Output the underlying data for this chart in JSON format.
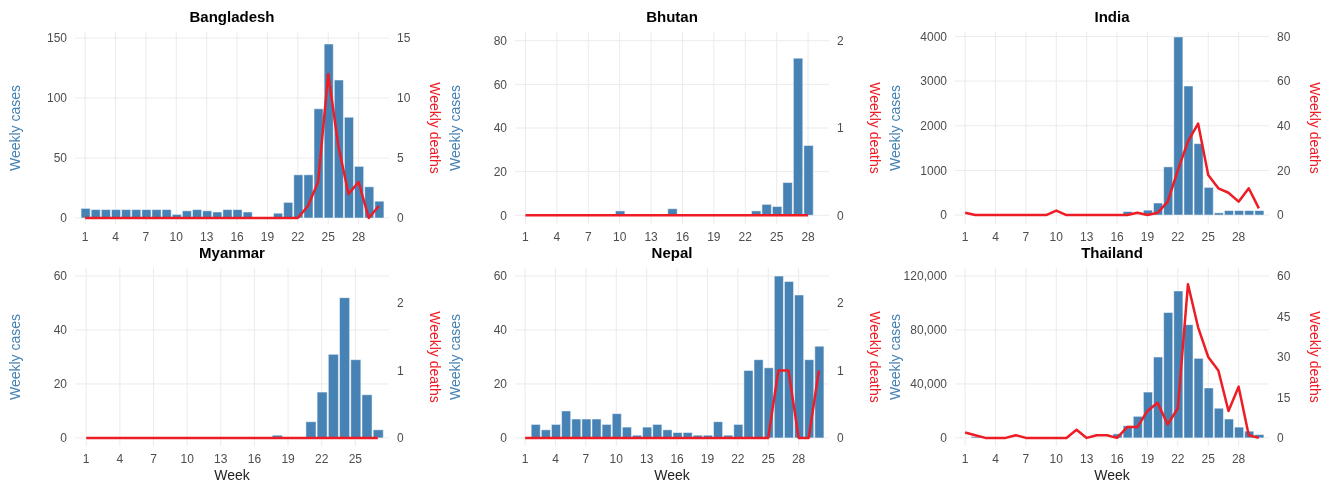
{
  "chart_data": [
    {
      "type": "bar",
      "title": "Bangladesh",
      "ylabel": "Weekly cases",
      "y2label": "Weekly deaths",
      "grid": true,
      "marker": "none",
      "x": [
        1,
        2,
        3,
        4,
        5,
        6,
        7,
        8,
        9,
        10,
        11,
        12,
        13,
        14,
        15,
        16,
        17,
        18,
        19,
        20,
        21,
        22,
        23,
        24,
        25,
        26,
        27,
        28,
        29,
        30
      ],
      "xlim": [
        0,
        31
      ],
      "xticks": [
        1,
        4,
        7,
        10,
        13,
        16,
        19,
        22,
        25,
        28
      ],
      "ylim": [
        -5,
        155
      ],
      "yticks": [
        0,
        50,
        100,
        150
      ],
      "y2lim": [
        -0.5,
        15.5
      ],
      "y2ticks": [
        0,
        5,
        10,
        15
      ],
      "series": [
        {
          "color": "#4682b4",
          "values": [
            8,
            7,
            7,
            7,
            7,
            7,
            7,
            7,
            7,
            3,
            6,
            7,
            6,
            5,
            7,
            7,
            5,
            0,
            0,
            4,
            13,
            36,
            36,
            91,
            145,
            115,
            84,
            43,
            26,
            14
          ]
        },
        {
          "type": "line",
          "axis": "y2",
          "color": "#ee1c25",
          "values": [
            0,
            0,
            0,
            0,
            0,
            0,
            0,
            0,
            0,
            0,
            0,
            0,
            0,
            0,
            0,
            0,
            0,
            0,
            0,
            0,
            0,
            0,
            1,
            3,
            12,
            6,
            2,
            3,
            0,
            1
          ]
        }
      ]
    },
    {
      "type": "bar",
      "title": "Bhutan",
      "ylabel": "Weekly cases",
      "y2label": "Weekly deaths",
      "grid": true,
      "marker": "none",
      "x": [
        1,
        2,
        3,
        4,
        5,
        6,
        7,
        8,
        9,
        10,
        11,
        12,
        13,
        14,
        15,
        16,
        17,
        18,
        19,
        20,
        21,
        22,
        23,
        24,
        25,
        26,
        27,
        28
      ],
      "xlim": [
        0,
        30
      ],
      "xticks": [
        1,
        4,
        7,
        10,
        13,
        16,
        19,
        22,
        25,
        28
      ],
      "ylim": [
        -4,
        84
      ],
      "yticks": [
        0,
        20,
        40,
        60,
        80
      ],
      "y2lim": [
        -0.1,
        2.1
      ],
      "y2ticks": [
        0,
        1,
        2
      ],
      "series": [
        {
          "color": "#4682b4",
          "values": [
            0,
            0,
            0,
            0,
            0,
            0,
            0,
            0,
            0,
            2,
            0,
            0,
            0,
            0,
            3,
            0,
            0,
            0,
            0,
            0,
            0,
            0,
            2,
            5,
            4,
            15,
            72,
            32
          ]
        },
        {
          "type": "line",
          "axis": "y2",
          "color": "#ee1c25",
          "values": [
            0,
            0,
            0,
            0,
            0,
            0,
            0,
            0,
            0,
            0,
            0,
            0,
            0,
            0,
            0,
            0,
            0,
            0,
            0,
            0,
            0,
            0,
            0,
            0,
            0,
            0,
            0,
            0
          ]
        }
      ]
    },
    {
      "type": "bar",
      "title": "India",
      "ylabel": "Weekly cases",
      "y2label": "Weekly deaths",
      "grid": true,
      "marker": "none",
      "x": [
        1,
        2,
        3,
        4,
        5,
        6,
        7,
        8,
        9,
        10,
        11,
        12,
        13,
        14,
        15,
        16,
        17,
        18,
        19,
        20,
        21,
        22,
        23,
        24,
        25,
        26,
        27,
        28,
        29,
        30
      ],
      "xlim": [
        0,
        31
      ],
      "xticks": [
        1,
        4,
        7,
        10,
        13,
        16,
        19,
        22,
        25,
        28
      ],
      "ylim": [
        -200,
        4100
      ],
      "yticks": [
        0,
        1000,
        2000,
        3000,
        4000
      ],
      "y2lim": [
        -4,
        82
      ],
      "y2ticks": [
        0,
        20,
        40,
        60,
        80
      ],
      "series": [
        {
          "color": "#4682b4",
          "values": [
            0,
            0,
            0,
            0,
            0,
            0,
            0,
            0,
            0,
            0,
            0,
            0,
            0,
            0,
            0,
            0,
            80,
            null,
            110,
            270,
            1080,
            3990,
            2890,
            1600,
            620,
            50,
            100,
            100,
            100,
            100
          ]
        },
        {
          "type": "line",
          "axis": "y2",
          "color": "#ee1c25",
          "values": [
            1,
            0,
            0,
            0,
            0,
            0,
            0,
            0,
            0,
            2,
            0,
            0,
            0,
            0,
            0,
            0,
            0,
            1,
            0,
            1,
            6,
            20,
            33,
            41,
            18,
            12,
            10,
            6,
            12,
            3
          ]
        }
      ]
    },
    {
      "type": "bar",
      "title": "Myanmar",
      "xlabel": "Week",
      "ylabel": "Weekly cases",
      "y2label": "Weekly deaths",
      "grid": true,
      "marker": "none",
      "x": [
        1,
        2,
        3,
        4,
        5,
        6,
        7,
        8,
        9,
        10,
        11,
        12,
        13,
        14,
        15,
        16,
        17,
        18,
        19,
        20,
        21,
        22,
        23,
        24,
        25,
        26,
        27
      ],
      "xlim": [
        0,
        28
      ],
      "xticks": [
        1,
        4,
        7,
        10,
        13,
        16,
        19,
        22,
        25
      ],
      "ylim": [
        -3,
        63
      ],
      "yticks": [
        0,
        20,
        40,
        60
      ],
      "y2lim": [
        -0.12,
        2.52
      ],
      "y2ticks": [
        0,
        1,
        2
      ],
      "series": [
        {
          "color": "#4682b4",
          "values": [
            0,
            0,
            0,
            0,
            0,
            0,
            0,
            0,
            0,
            0,
            0,
            0,
            0,
            0,
            0,
            0,
            0,
            1,
            0,
            0,
            6,
            17,
            31,
            52,
            29,
            16,
            3
          ]
        },
        {
          "type": "line",
          "axis": "y2",
          "color": "#ee1c25",
          "values": [
            0,
            0,
            0,
            0,
            0,
            0,
            0,
            0,
            0,
            0,
            0,
            0,
            0,
            0,
            0,
            0,
            0,
            0,
            0,
            0,
            0,
            0,
            0,
            0,
            0,
            0,
            0
          ]
        }
      ]
    },
    {
      "type": "bar",
      "title": "Nepal",
      "xlabel": "Week",
      "ylabel": "Weekly cases",
      "y2label": "Weekly deaths",
      "grid": true,
      "marker": "none",
      "x": [
        1,
        2,
        3,
        4,
        5,
        6,
        7,
        8,
        9,
        10,
        11,
        12,
        13,
        14,
        15,
        16,
        17,
        18,
        19,
        20,
        21,
        22,
        23,
        24,
        25,
        26,
        27,
        28,
        29,
        30
      ],
      "xlim": [
        0,
        31
      ],
      "xticks": [
        1,
        4,
        7,
        10,
        13,
        16,
        19,
        22,
        25,
        28
      ],
      "ylim": [
        -3,
        63
      ],
      "yticks": [
        0,
        20,
        40,
        60
      ],
      "y2lim": [
        -0.12,
        2.52
      ],
      "y2ticks": [
        0,
        1,
        2
      ],
      "series": [
        {
          "color": "#4682b4",
          "values": [
            0,
            5,
            3,
            5,
            10,
            7,
            7,
            7,
            5,
            9,
            4,
            1,
            4,
            5,
            3,
            2,
            2,
            1,
            1,
            6,
            1,
            5,
            25,
            29,
            26,
            60,
            58,
            53,
            29,
            34
          ]
        },
        {
          "type": "line",
          "axis": "y2",
          "color": "#ee1c25",
          "values": [
            0,
            0,
            0,
            0,
            0,
            0,
            0,
            0,
            0,
            0,
            0,
            0,
            0,
            0,
            0,
            0,
            0,
            0,
            0,
            0,
            0,
            0,
            0,
            0,
            0,
            1,
            1,
            0,
            0,
            1
          ]
        }
      ]
    },
    {
      "type": "bar",
      "title": "Thailand",
      "xlabel": "Week",
      "ylabel": "Weekly cases",
      "y2label": "Weekly deaths",
      "grid": true,
      "marker": "none",
      "x": [
        1,
        2,
        3,
        4,
        5,
        6,
        7,
        8,
        9,
        10,
        11,
        12,
        13,
        14,
        15,
        16,
        17,
        18,
        19,
        20,
        21,
        22,
        23,
        24,
        25,
        26,
        27,
        28,
        29,
        30
      ],
      "xlim": [
        0,
        31
      ],
      "xticks": [
        1,
        4,
        7,
        10,
        13,
        16,
        19,
        22,
        25,
        28
      ],
      "ylim": [
        -6000,
        126000
      ],
      "yticks": [
        0,
        {
          "value": 40000,
          "label": "40,000"
        },
        {
          "value": 80000,
          "label": "80,000"
        },
        {
          "value": 120000,
          "label": "120,000"
        }
      ],
      "y2lim": [
        -3,
        63
      ],
      "y2ticks": [
        0,
        15,
        30,
        45,
        60
      ],
      "series": [
        {
          "color": "#4682b4",
          "values": [
            0,
            1000,
            null,
            0,
            0,
            0,
            0,
            0,
            0,
            0,
            0,
            null,
            0,
            0,
            0,
            3000,
            9000,
            16000,
            34000,
            60000,
            93000,
            109000,
            84000,
            59000,
            37000,
            22000,
            14000,
            8000,
            5000,
            2500
          ]
        },
        {
          "type": "line",
          "axis": "y2",
          "color": "#ee1c25",
          "values": [
            2,
            1,
            0,
            0,
            0,
            1,
            0,
            0,
            0,
            0,
            0,
            3,
            0,
            1,
            1,
            0,
            4,
            4,
            10,
            13,
            5,
            11,
            57,
            41,
            30,
            25,
            10,
            19,
            1,
            0
          ]
        }
      ]
    }
  ]
}
